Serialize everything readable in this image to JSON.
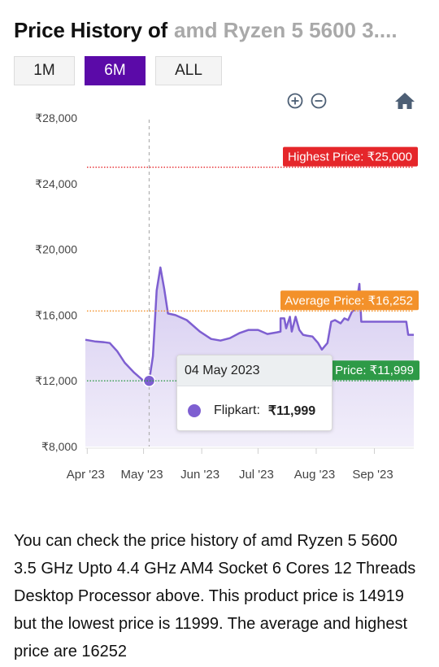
{
  "header": {
    "title": "Price History of",
    "product": "amd Ryzen 5 5600 3...."
  },
  "tabs": [
    {
      "label": "1M",
      "active": false
    },
    {
      "label": "6M",
      "active": true
    },
    {
      "label": "ALL",
      "active": false
    }
  ],
  "toolbar": {
    "zoom_in_icon": "plus-circle-icon",
    "zoom_out_icon": "minus-circle-icon",
    "reset_icon": "home-icon"
  },
  "tooltip": {
    "date": "04 May 2023",
    "series": "Flipkart:",
    "value": "₹11,999",
    "color": "#7e5fd1"
  },
  "description": "You can check the price history of amd Ryzen 5 5600 3.5 GHz Upto 4.4 GHz AM4 Socket 6 Cores 12 Threads Desktop Processor above. This product price is 14919 but the lowest price is 11999. The average and highest price are 16252",
  "chart_data": {
    "type": "area",
    "series": [
      {
        "name": "Flipkart",
        "color": "#7e5fd1",
        "points": [
          [
            "2023-03-31",
            14500
          ],
          [
            "2023-04-05",
            14400
          ],
          [
            "2023-04-10",
            14350
          ],
          [
            "2023-04-13",
            14300
          ],
          [
            "2023-04-17",
            13800
          ],
          [
            "2023-04-21",
            13100
          ],
          [
            "2023-04-26",
            12500
          ],
          [
            "2023-05-01",
            11999
          ],
          [
            "2023-05-04",
            11999
          ],
          [
            "2023-05-06",
            13500
          ],
          [
            "2023-05-08",
            17500
          ],
          [
            "2023-05-10",
            18900
          ],
          [
            "2023-05-12",
            17600
          ],
          [
            "2023-05-14",
            16100
          ],
          [
            "2023-05-18",
            16000
          ],
          [
            "2023-05-24",
            15700
          ],
          [
            "2023-05-31",
            15000
          ],
          [
            "2023-06-06",
            14550
          ],
          [
            "2023-06-11",
            14450
          ],
          [
            "2023-06-16",
            14600
          ],
          [
            "2023-06-21",
            14900
          ],
          [
            "2023-06-26",
            15100
          ],
          [
            "2023-07-01",
            15100
          ],
          [
            "2023-07-06",
            14850
          ],
          [
            "2023-07-11",
            14950
          ],
          [
            "2023-07-13",
            15000
          ],
          [
            "2023-07-13",
            15800
          ],
          [
            "2023-07-15",
            15800
          ],
          [
            "2023-07-16",
            15200
          ],
          [
            "2023-07-18",
            15900
          ],
          [
            "2023-07-19",
            15000
          ],
          [
            "2023-07-21",
            15900
          ],
          [
            "2023-07-23",
            15100
          ],
          [
            "2023-07-25",
            14800
          ],
          [
            "2023-07-27",
            14750
          ],
          [
            "2023-07-30",
            14700
          ],
          [
            "2023-08-02",
            14300
          ],
          [
            "2023-08-04",
            13900
          ],
          [
            "2023-08-07",
            14300
          ],
          [
            "2023-08-09",
            15600
          ],
          [
            "2023-08-11",
            15700
          ],
          [
            "2023-08-14",
            15500
          ],
          [
            "2023-08-16",
            15800
          ],
          [
            "2023-08-18",
            15700
          ],
          [
            "2023-08-20",
            16200
          ],
          [
            "2023-08-22",
            16400
          ],
          [
            "2023-08-24",
            17900
          ],
          [
            "2023-08-25",
            15600
          ],
          [
            "2023-08-27",
            15600
          ],
          [
            "2023-09-01",
            15600
          ],
          [
            "2023-09-08",
            15600
          ],
          [
            "2023-09-14",
            15600
          ],
          [
            "2023-09-18",
            15600
          ],
          [
            "2023-09-19",
            14800
          ],
          [
            "2023-09-22",
            14800
          ]
        ]
      }
    ],
    "highlighted_point": [
      "2023-05-04",
      11999
    ],
    "yticks": [
      "₹28,000",
      "₹24,000",
      "₹20,000",
      "₹16,000",
      "₹12,000",
      "₹8,000"
    ],
    "ytick_values": [
      28000,
      24000,
      20000,
      16000,
      12000,
      8000
    ],
    "xticks": [
      "Apr '23",
      "May '23",
      "Jun '23",
      "Jul '23",
      "Aug '23",
      "Sep '23"
    ],
    "xtick_dates": [
      "2023-04-01",
      "2023-05-01",
      "2023-06-01",
      "2023-07-01",
      "2023-08-01",
      "2023-09-01"
    ],
    "xlim": [
      "2023-03-31",
      "2023-09-22"
    ],
    "ylim": [
      8000,
      28000
    ],
    "grid": false,
    "annotations": [
      {
        "label": "Highest Price: ₹25,000",
        "value": 25000,
        "color": "#e5262a",
        "line": "dotted"
      },
      {
        "label": "Average Price: ₹16,252",
        "value": 16252,
        "color": "#f3912a",
        "line": "dotted"
      },
      {
        "label": "Price: ₹11,999",
        "value": 11999,
        "color": "#2e9a47",
        "line": "dotted"
      }
    ]
  }
}
